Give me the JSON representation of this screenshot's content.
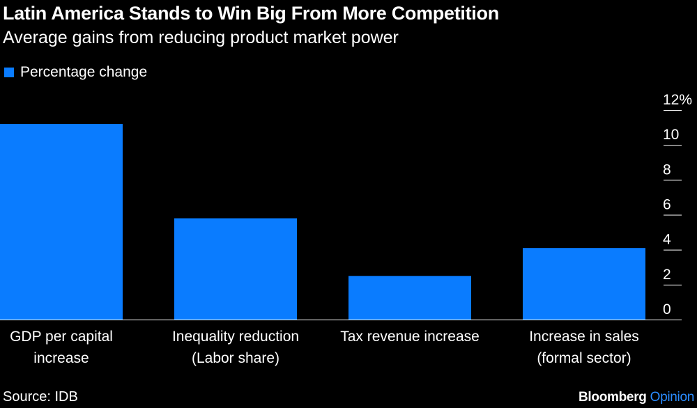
{
  "title": "Latin America Stands to Win Big From More Competition",
  "subtitle": "Average gains from reducing product market power",
  "legend": {
    "label": "Percentage change",
    "color": "#0a7cff"
  },
  "source": "Source: IDB",
  "brand": {
    "name": "Bloomberg",
    "suffix": "Opinion"
  },
  "chart_data": {
    "type": "bar",
    "title": "Latin America Stands to Win Big From More Competition",
    "subtitle": "Average gains from reducing product market power",
    "categories": [
      [
        "GDP per capital",
        "increase"
      ],
      [
        "Inequality reduction",
        "(Labor share)"
      ],
      [
        "Tax revenue increase"
      ],
      [
        "Increase in sales",
        "(formal sector)"
      ]
    ],
    "series": [
      {
        "name": "Percentage change",
        "color": "#0a7cff",
        "values": [
          11.2,
          5.8,
          2.5,
          4.1
        ]
      }
    ],
    "ylim": [
      0,
      12
    ],
    "yticks": [
      0,
      2,
      4,
      6,
      8,
      10,
      12
    ],
    "ytick_labels": [
      "0",
      "2",
      "4",
      "6",
      "8",
      "10",
      "12%"
    ],
    "yaxis_side": "right",
    "grid": false,
    "xlabel": "",
    "ylabel": "",
    "legend_position": "top-left"
  }
}
